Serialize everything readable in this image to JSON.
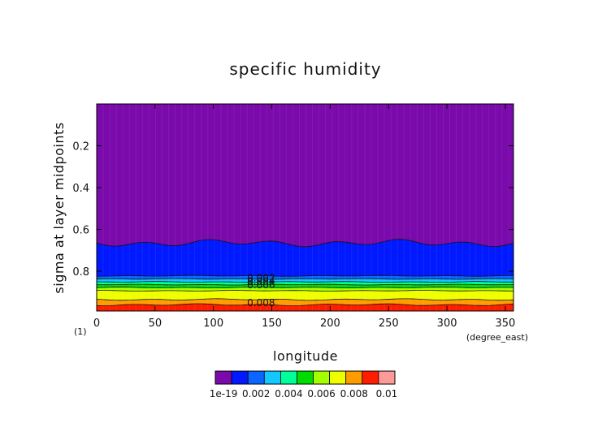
{
  "chart_data": {
    "type": "heatmap",
    "title": "specific humidity",
    "xlabel": "longitude",
    "ylabel": "sigma at layer midpoints",
    "x_unit": "(degree_east)",
    "y_unit": "(1)",
    "xlim": [
      0,
      357
    ],
    "ylim": [
      0,
      0.99
    ],
    "y_inverted": true,
    "xticks": [
      0,
      50,
      100,
      150,
      200,
      250,
      300,
      350
    ],
    "xtick_labels": [
      "0",
      "50",
      "100",
      "150",
      "200",
      "250",
      "300",
      "350"
    ],
    "yticks": [
      0.2,
      0.4,
      0.6,
      0.8
    ],
    "ytick_labels": [
      "0.2",
      "0.4",
      "0.6",
      "0.8"
    ],
    "contour_levels": [
      1e-19,
      0.001,
      0.002,
      0.003,
      0.004,
      0.005,
      0.006,
      0.007,
      0.008,
      0.009,
      0.01
    ],
    "level_colors": [
      "#7a0aab",
      "#0019ff",
      "#0b66ff",
      "#13c7ff",
      "#00ff9a",
      "#00dc00",
      "#a5ff00",
      "#f0ff00",
      "#ff9d00",
      "#ff1d00",
      "#ff9a9a"
    ],
    "sigma_of_level_boundary": [
      0.665,
      0.822,
      0.837,
      0.851,
      0.864,
      0.878,
      0.893,
      0.935,
      0.96,
      0.99
    ],
    "contour_labels": [
      {
        "text": "0.002",
        "lon": 133,
        "sigma": 0.833
      },
      {
        "text": "0.004",
        "lon": 133,
        "sigma": 0.848
      },
      {
        "text": "0.006",
        "lon": 133,
        "sigma": 0.866
      },
      {
        "text": "0.008",
        "lon": 133,
        "sigma": 0.952
      }
    ],
    "colorbar_tick_labels": [
      "1e-19",
      "0.002",
      "0.004",
      "0.006",
      "0.008",
      "0.01"
    ],
    "colorbar_tick_values": [
      1e-19,
      0.002,
      0.004,
      0.006,
      0.008,
      0.01
    ]
  }
}
